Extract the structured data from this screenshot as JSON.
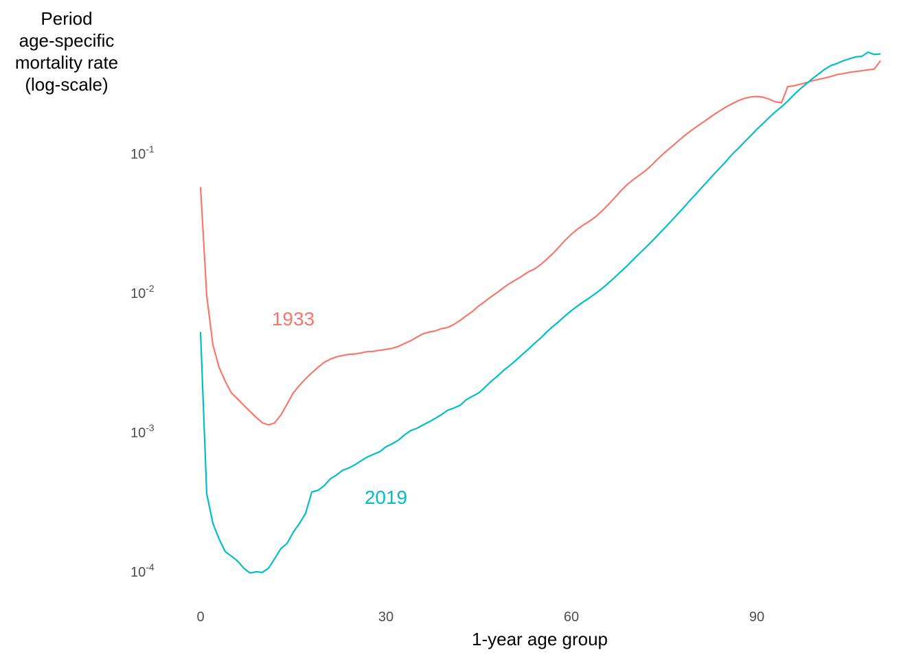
{
  "chart_data": {
    "type": "line",
    "ylabel_lines": [
      "Period",
      "age-specific",
      "mortality rate",
      "(log-scale)"
    ],
    "xlabel": "1-year age group",
    "x_ticks": [
      0,
      30,
      60,
      90
    ],
    "y_ticks": [
      {
        "base": "10",
        "exp": "-4",
        "value": 0.0001
      },
      {
        "base": "10",
        "exp": "-3",
        "value": 0.001
      },
      {
        "base": "10",
        "exp": "-2",
        "value": 0.01
      },
      {
        "base": "10",
        "exp": "-1",
        "value": 0.1
      }
    ],
    "xlim": [
      -3,
      110
    ],
    "ylim": [
      6e-05,
      0.35
    ],
    "log_y": true,
    "grid": false,
    "legend": "direct labels",
    "series": [
      {
        "name": "1933",
        "color": "#F8766D",
        "label_at": {
          "x": 15,
          "y": 0.0065
        },
        "points": [
          [
            0,
            0.057
          ],
          [
            1,
            0.0095
          ],
          [
            2,
            0.0042
          ],
          [
            3,
            0.0029
          ],
          [
            4,
            0.0023
          ],
          [
            5,
            0.0019
          ],
          [
            6,
            0.00172
          ],
          [
            7,
            0.00155
          ],
          [
            8,
            0.0014
          ],
          [
            9,
            0.00127
          ],
          [
            10,
            0.00116
          ],
          [
            11,
            0.00112
          ],
          [
            12,
            0.00116
          ],
          [
            13,
            0.00132
          ],
          [
            14,
            0.00158
          ],
          [
            15,
            0.0019
          ],
          [
            16,
            0.00215
          ],
          [
            17,
            0.0024
          ],
          [
            18,
            0.00265
          ],
          [
            19,
            0.0029
          ],
          [
            20,
            0.00315
          ],
          [
            21,
            0.00332
          ],
          [
            22,
            0.00345
          ],
          [
            23,
            0.00353
          ],
          [
            24,
            0.0036
          ],
          [
            25,
            0.00362
          ],
          [
            26,
            0.00368
          ],
          [
            27,
            0.00376
          ],
          [
            28,
            0.00378
          ],
          [
            29,
            0.00385
          ],
          [
            30,
            0.0039
          ],
          [
            31,
            0.00397
          ],
          [
            32,
            0.0041
          ],
          [
            33,
            0.0043
          ],
          [
            34,
            0.0045
          ],
          [
            35,
            0.00478
          ],
          [
            36,
            0.00505
          ],
          [
            37,
            0.0052
          ],
          [
            38,
            0.0053
          ],
          [
            39,
            0.0055
          ],
          [
            40,
            0.0056
          ],
          [
            41,
            0.0059
          ],
          [
            42,
            0.0063
          ],
          [
            43,
            0.0068
          ],
          [
            44,
            0.0073
          ],
          [
            45,
            0.008
          ],
          [
            46,
            0.0086
          ],
          [
            47,
            0.0093
          ],
          [
            48,
            0.01
          ],
          [
            49,
            0.0108
          ],
          [
            50,
            0.0116
          ],
          [
            51,
            0.0123
          ],
          [
            52,
            0.0131
          ],
          [
            53,
            0.014
          ],
          [
            54,
            0.0147
          ],
          [
            55,
            0.0158
          ],
          [
            56,
            0.0173
          ],
          [
            57,
            0.019
          ],
          [
            58,
            0.0212
          ],
          [
            59,
            0.0237
          ],
          [
            60,
            0.0262
          ],
          [
            61,
            0.0285
          ],
          [
            62,
            0.0306
          ],
          [
            63,
            0.0326
          ],
          [
            64,
            0.0352
          ],
          [
            65,
            0.0386
          ],
          [
            66,
            0.0428
          ],
          [
            67,
            0.0478
          ],
          [
            68,
            0.0536
          ],
          [
            69,
            0.0592
          ],
          [
            70,
            0.0645
          ],
          [
            71,
            0.0695
          ],
          [
            72,
            0.0749
          ],
          [
            73,
            0.082
          ],
          [
            74,
            0.091
          ],
          [
            75,
            0.1
          ],
          [
            76,
            0.109
          ],
          [
            77,
            0.119
          ],
          [
            78,
            0.13
          ],
          [
            79,
            0.141
          ],
          [
            80,
            0.152
          ],
          [
            81,
            0.163
          ],
          [
            82,
            0.175
          ],
          [
            83,
            0.188
          ],
          [
            84,
            0.201
          ],
          [
            85,
            0.214
          ],
          [
            86,
            0.226
          ],
          [
            87,
            0.238
          ],
          [
            88,
            0.247
          ],
          [
            89,
            0.253
          ],
          [
            90,
            0.255
          ],
          [
            91,
            0.252
          ],
          [
            92,
            0.244
          ],
          [
            93,
            0.233
          ],
          [
            94,
            0.23
          ],
          [
            95,
            0.3
          ],
          [
            96,
            0.304
          ],
          [
            97,
            0.312
          ],
          [
            98,
            0.32
          ],
          [
            99,
            0.33
          ],
          [
            100,
            0.338
          ],
          [
            101,
            0.346
          ],
          [
            102,
            0.355
          ],
          [
            103,
            0.366
          ],
          [
            104,
            0.372
          ],
          [
            105,
            0.38
          ],
          [
            106,
            0.385
          ],
          [
            107,
            0.39
          ],
          [
            108,
            0.396
          ],
          [
            109,
            0.4
          ],
          [
            110,
            0.46
          ]
        ]
      },
      {
        "name": "2019",
        "color": "#00BFC4",
        "label_at": {
          "x": 30,
          "y": 0.00034
        },
        "points": [
          [
            0,
            0.0052
          ],
          [
            1,
            0.00036
          ],
          [
            2,
            0.00022
          ],
          [
            3,
            0.00017
          ],
          [
            4,
            0.000138
          ],
          [
            5,
            0.000128
          ],
          [
            6,
            0.000118
          ],
          [
            7,
            0.000105
          ],
          [
            8,
            9.7e-05
          ],
          [
            9,
            9.9e-05
          ],
          [
            10,
            9.8e-05
          ],
          [
            11,
            0.000105
          ],
          [
            12,
            0.000123
          ],
          [
            13,
            0.000145
          ],
          [
            14,
            0.000158
          ],
          [
            15,
            0.00019
          ],
          [
            16,
            0.00022
          ],
          [
            17,
            0.00026
          ],
          [
            18,
            0.00037
          ],
          [
            19,
            0.00038
          ],
          [
            20,
            0.00041
          ],
          [
            21,
            0.00046
          ],
          [
            22,
            0.00049
          ],
          [
            23,
            0.00053
          ],
          [
            24,
            0.00055
          ],
          [
            25,
            0.00058
          ],
          [
            26,
            0.00062
          ],
          [
            27,
            0.00066
          ],
          [
            28,
            0.00069
          ],
          [
            29,
            0.00072
          ],
          [
            30,
            0.00078
          ],
          [
            31,
            0.00082
          ],
          [
            32,
            0.00087
          ],
          [
            33,
            0.00095
          ],
          [
            34,
            0.00102
          ],
          [
            35,
            0.00106
          ],
          [
            36,
            0.00112
          ],
          [
            37,
            0.00118
          ],
          [
            38,
            0.00125
          ],
          [
            39,
            0.00133
          ],
          [
            40,
            0.00143
          ],
          [
            41,
            0.00148
          ],
          [
            42,
            0.00155
          ],
          [
            43,
            0.0017
          ],
          [
            44,
            0.0018
          ],
          [
            45,
            0.0019
          ],
          [
            46,
            0.00208
          ],
          [
            47,
            0.0023
          ],
          [
            48,
            0.0025
          ],
          [
            49,
            0.00275
          ],
          [
            50,
            0.00298
          ],
          [
            51,
            0.00325
          ],
          [
            52,
            0.00357
          ],
          [
            53,
            0.0039
          ],
          [
            54,
            0.0043
          ],
          [
            55,
            0.0047
          ],
          [
            56,
            0.0052
          ],
          [
            57,
            0.0057
          ],
          [
            58,
            0.0062
          ],
          [
            59,
            0.0068
          ],
          [
            60,
            0.0074
          ],
          [
            61,
            0.008
          ],
          [
            62,
            0.0086
          ],
          [
            63,
            0.0092
          ],
          [
            64,
            0.0099
          ],
          [
            65,
            0.0107
          ],
          [
            66,
            0.0117
          ],
          [
            67,
            0.0128
          ],
          [
            68,
            0.0141
          ],
          [
            69,
            0.0155
          ],
          [
            70,
            0.0172
          ],
          [
            71,
            0.019
          ],
          [
            72,
            0.021
          ],
          [
            73,
            0.0232
          ],
          [
            74,
            0.0258
          ],
          [
            75,
            0.0287
          ],
          [
            76,
            0.032
          ],
          [
            77,
            0.0358
          ],
          [
            78,
            0.0399
          ],
          [
            79,
            0.0448
          ],
          [
            80,
            0.05
          ],
          [
            81,
            0.056
          ],
          [
            82,
            0.0625
          ],
          [
            83,
            0.07
          ],
          [
            84,
            0.078
          ],
          [
            85,
            0.087
          ],
          [
            86,
            0.098
          ],
          [
            87,
            0.108
          ],
          [
            88,
            0.12
          ],
          [
            89,
            0.133
          ],
          [
            90,
            0.148
          ],
          [
            91,
            0.163
          ],
          [
            92,
            0.18
          ],
          [
            93,
            0.198
          ],
          [
            94,
            0.215
          ],
          [
            95,
            0.236
          ],
          [
            96,
            0.262
          ],
          [
            97,
            0.288
          ],
          [
            98,
            0.314
          ],
          [
            99,
            0.342
          ],
          [
            100,
            0.37
          ],
          [
            101,
            0.4
          ],
          [
            102,
            0.425
          ],
          [
            103,
            0.44
          ],
          [
            104,
            0.46
          ],
          [
            105,
            0.475
          ],
          [
            106,
            0.49
          ],
          [
            107,
            0.495
          ],
          [
            108,
            0.53
          ],
          [
            109,
            0.51
          ],
          [
            110,
            0.515
          ]
        ]
      }
    ]
  }
}
